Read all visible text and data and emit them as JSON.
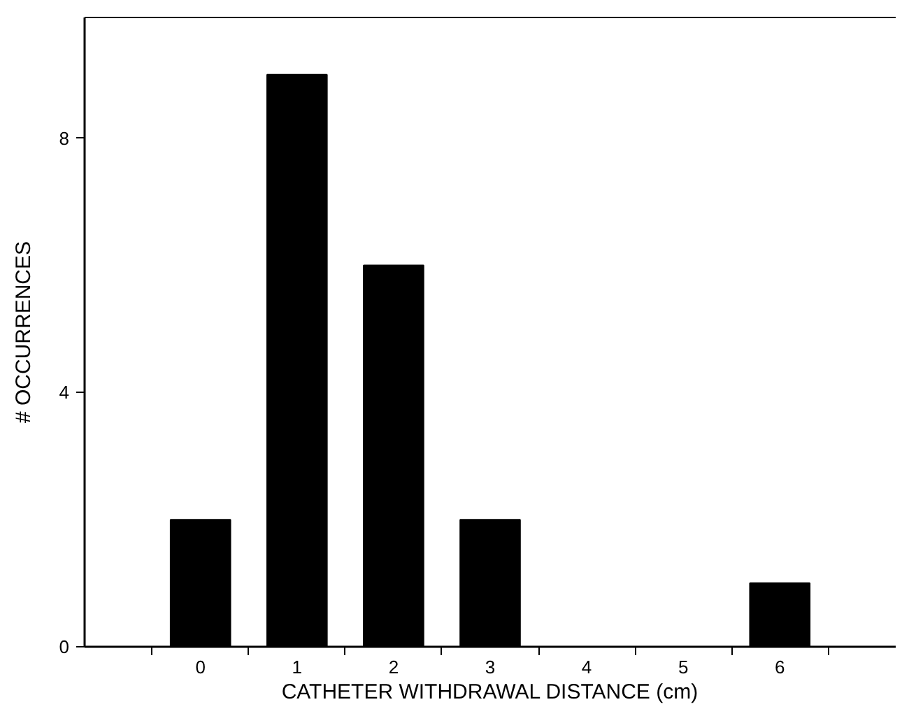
{
  "chart_data": {
    "type": "bar",
    "xlabel": "CATHETER WITHDRAWAL DISTANCE (cm)",
    "ylabel": "# OCCURRENCES",
    "categories": [
      "0",
      "1",
      "2",
      "3",
      "4",
      "5",
      "6"
    ],
    "values": [
      2,
      9,
      6,
      2,
      0,
      0,
      1
    ],
    "color": "#000000",
    "ylim": [
      0,
      9.9
    ],
    "yticks": [
      0,
      4,
      8
    ],
    "grid": false
  }
}
